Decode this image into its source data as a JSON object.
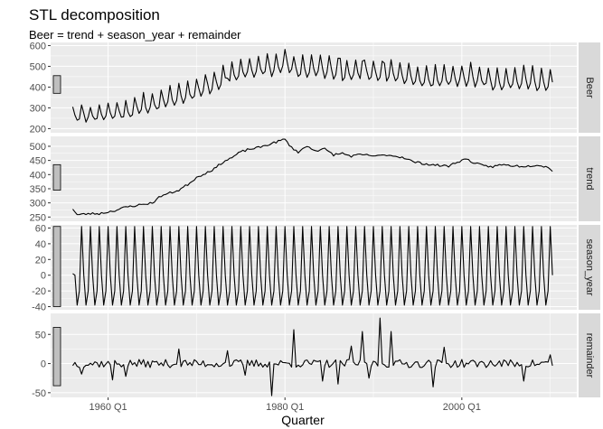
{
  "chart_data": {
    "type": "line",
    "title": "STL decomposition",
    "subtitle": "Beer = trend + season_year + remainder",
    "xlabel": "Quarter",
    "ylabel": "",
    "x_start": "1956 Q1",
    "x_end": "2010 Q2",
    "x_ticks": [
      {
        "x": "1960 Q1",
        "label": "1960 Q1"
      },
      {
        "x": "1980 Q1",
        "label": "1980 Q1"
      },
      {
        "x": "2000 Q1",
        "label": "2000 Q1"
      }
    ],
    "grid": true,
    "colors": {
      "panel_bg": "#ebebeb",
      "grid": "#ffffff",
      "strip_bg": "#d9d9d9",
      "line": "#000000",
      "bar_fill": "#bfbfbf"
    },
    "panels": [
      {
        "name": "Beer",
        "ylim": [
          180,
          615
        ],
        "yticks": [
          200,
          300,
          400,
          500,
          600
        ],
        "scale_bar": [
          370,
          455
        ],
        "trend_knots": [
          [
            1956,
            270
          ],
          [
            1958,
            265
          ],
          [
            1962,
            285
          ],
          [
            1966,
            330
          ],
          [
            1969,
            370
          ],
          [
            1972,
            420
          ],
          [
            1975,
            480
          ],
          [
            1979,
            500
          ],
          [
            1980,
            520
          ],
          [
            1981,
            490
          ],
          [
            1984,
            490
          ],
          [
            1988,
            470
          ],
          [
            1992,
            470
          ],
          [
            1995,
            440
          ],
          [
            1998,
            440
          ],
          [
            2001,
            450
          ],
          [
            2004,
            430
          ],
          [
            2008,
            435
          ],
          [
            2010.25,
            415
          ]
        ],
        "amp_knots": [
          [
            1956,
            40
          ],
          [
            1962,
            55
          ],
          [
            1966,
            60
          ],
          [
            1980,
            62
          ],
          [
            2000,
            62
          ],
          [
            2010.25,
            62
          ]
        ],
        "noise_seed": 11,
        "noise": 10,
        "spikes": [
          [
            1986.25,
            60
          ],
          [
            1988.75,
            75
          ],
          [
            1991.25,
            45
          ],
          [
            1973.5,
            30
          ]
        ]
      },
      {
        "name": "trend",
        "ylim": [
          235,
          535
        ],
        "yticks": [
          250,
          300,
          350,
          400,
          450,
          500
        ],
        "scale_bar": [
          345,
          435
        ],
        "knots": [
          [
            1956,
            280
          ],
          [
            1956.5,
            258
          ],
          [
            1958,
            262
          ],
          [
            1959,
            262
          ],
          [
            1960,
            268
          ],
          [
            1961,
            275
          ],
          [
            1962,
            285
          ],
          [
            1963,
            290
          ],
          [
            1964,
            295
          ],
          [
            1965,
            300
          ],
          [
            1966,
            325
          ],
          [
            1967,
            335
          ],
          [
            1968,
            345
          ],
          [
            1969,
            365
          ],
          [
            1970,
            390
          ],
          [
            1971,
            405
          ],
          [
            1972,
            420
          ],
          [
            1973,
            445
          ],
          [
            1974,
            460
          ],
          [
            1975,
            480
          ],
          [
            1976,
            490
          ],
          [
            1977,
            495
          ],
          [
            1978,
            505
          ],
          [
            1979,
            515
          ],
          [
            1980,
            525
          ],
          [
            1980.75,
            495
          ],
          [
            1981.5,
            480
          ],
          [
            1982.5,
            500
          ],
          [
            1983.5,
            485
          ],
          [
            1984.5,
            490
          ],
          [
            1985.5,
            470
          ],
          [
            1986.5,
            475
          ],
          [
            1987.5,
            465
          ],
          [
            1988.5,
            470
          ],
          [
            1989.5,
            468
          ],
          [
            1990.5,
            465
          ],
          [
            1991.5,
            470
          ],
          [
            1992.5,
            465
          ],
          [
            1993.5,
            460
          ],
          [
            1994.5,
            445
          ],
          [
            1995.5,
            440
          ],
          [
            1996.5,
            435
          ],
          [
            1997.5,
            432
          ],
          [
            1998.5,
            430
          ],
          [
            1999.5,
            445
          ],
          [
            2000.5,
            455
          ],
          [
            2001.5,
            440
          ],
          [
            2002.5,
            430
          ],
          [
            2003.5,
            428
          ],
          [
            2004.5,
            435
          ],
          [
            2005.5,
            432
          ],
          [
            2006.5,
            430
          ],
          [
            2007.5,
            430
          ],
          [
            2008.5,
            435
          ],
          [
            2009.5,
            428
          ],
          [
            2010.25,
            415
          ]
        ],
        "noise_seed": 23,
        "noise": 4
      },
      {
        "name": "season_year",
        "ylim": [
          -44,
          64
        ],
        "yticks": [
          -40,
          -20,
          0,
          20,
          40,
          60
        ],
        "scale_bar": [
          -40,
          62
        ],
        "pattern": [
          62,
          0,
          -38,
          -20
        ],
        "first_value": 2
      },
      {
        "name": "remainder",
        "ylim": [
          -58,
          86
        ],
        "yticks": [
          -50,
          0,
          50
        ],
        "scale_bar": [
          -38,
          62
        ],
        "noise_seed": 37,
        "noise": 7,
        "spikes": [
          [
            1957,
            -18
          ],
          [
            1960.5,
            -28
          ],
          [
            1962,
            -22
          ],
          [
            1968,
            25
          ],
          [
            1973.5,
            22
          ],
          [
            1975.5,
            -20
          ],
          [
            1978.5,
            -55
          ],
          [
            1981,
            58
          ],
          [
            1984.25,
            -30
          ],
          [
            1986,
            -35
          ],
          [
            1987.5,
            30
          ],
          [
            1988.75,
            55
          ],
          [
            1989.5,
            -25
          ],
          [
            1990.75,
            78
          ],
          [
            1992,
            55
          ],
          [
            1996.75,
            -40
          ],
          [
            1998,
            28
          ],
          [
            2007,
            -30
          ],
          [
            2010,
            15
          ]
        ]
      }
    ]
  }
}
